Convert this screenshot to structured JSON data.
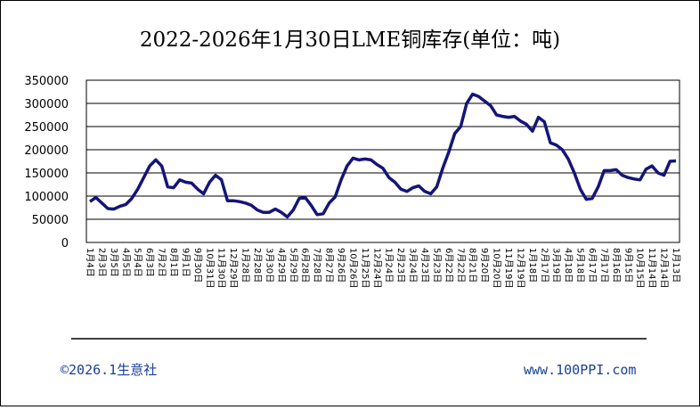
{
  "chart_data": {
    "type": "line",
    "title": "2022-2026年1月30日LME铜库存(单位：吨)",
    "footer_left": "©2026.1生意社",
    "footer_right": "www.100PPI.com",
    "categories": [
      "1月4日",
      null,
      "2月3日",
      null,
      "3月5日",
      null,
      "4月5日",
      null,
      "5月4日",
      null,
      "6月3日",
      null,
      "7月2日",
      null,
      "8月1日",
      null,
      "9月1日",
      null,
      "9月30日",
      null,
      "10月31日",
      null,
      "11月30日",
      null,
      "12月29日",
      null,
      "1月28日",
      null,
      "2月28日",
      null,
      "3月30日",
      null,
      "4月29日",
      null,
      "5月29日",
      null,
      "6月28日",
      null,
      "7月28日",
      null,
      "8月27日",
      null,
      "9月26日",
      null,
      "10月26日",
      null,
      "11月25日",
      null,
      "12月24日",
      null,
      "1月24日",
      null,
      "2月23日",
      null,
      "3月24日",
      null,
      "4月23日",
      null,
      "5月23日",
      null,
      "6月22日",
      null,
      "7月22日",
      null,
      "8月21日",
      null,
      "9月20日",
      null,
      "10月20日",
      null,
      "11月19日",
      null,
      "12月19日",
      null,
      "1月18日",
      null,
      "2月17日",
      null,
      "3月19日",
      null,
      "4月18日",
      null,
      "5月18日",
      null,
      "6月17日",
      null,
      "7月17日",
      null,
      "8月16日",
      null,
      "9月15日",
      null,
      "10月15日",
      null,
      "11月14日",
      null,
      "12月14日",
      null,
      "1月13日"
    ],
    "series": [
      {
        "name": "LME铜库存",
        "color": "#14147a",
        "values": [
          88000,
          97000,
          85000,
          73000,
          72000,
          78000,
          82000,
          95000,
          115000,
          140000,
          165000,
          178000,
          165000,
          120000,
          118000,
          135000,
          130000,
          128000,
          115000,
          105000,
          130000,
          145000,
          135000,
          90000,
          90000,
          88000,
          85000,
          80000,
          70000,
          65000,
          65000,
          72000,
          65000,
          55000,
          70000,
          95000,
          97000,
          80000,
          60000,
          62000,
          85000,
          98000,
          135000,
          165000,
          182000,
          178000,
          180000,
          178000,
          168000,
          160000,
          140000,
          130000,
          115000,
          110000,
          118000,
          122000,
          110000,
          105000,
          120000,
          160000,
          195000,
          235000,
          250000,
          300000,
          320000,
          315000,
          305000,
          295000,
          275000,
          272000,
          270000,
          272000,
          262000,
          255000,
          240000,
          270000,
          260000,
          215000,
          210000,
          200000,
          180000,
          150000,
          115000,
          93000,
          95000,
          120000,
          155000,
          155000,
          157000,
          145000,
          140000,
          137000,
          135000,
          158000,
          165000,
          150000,
          145000,
          175000,
          176000
        ]
      }
    ],
    "ylim": [
      0,
      350000
    ],
    "yticks": [
      0,
      50000,
      100000,
      150000,
      200000,
      250000,
      300000,
      350000
    ],
    "grid": true
  }
}
